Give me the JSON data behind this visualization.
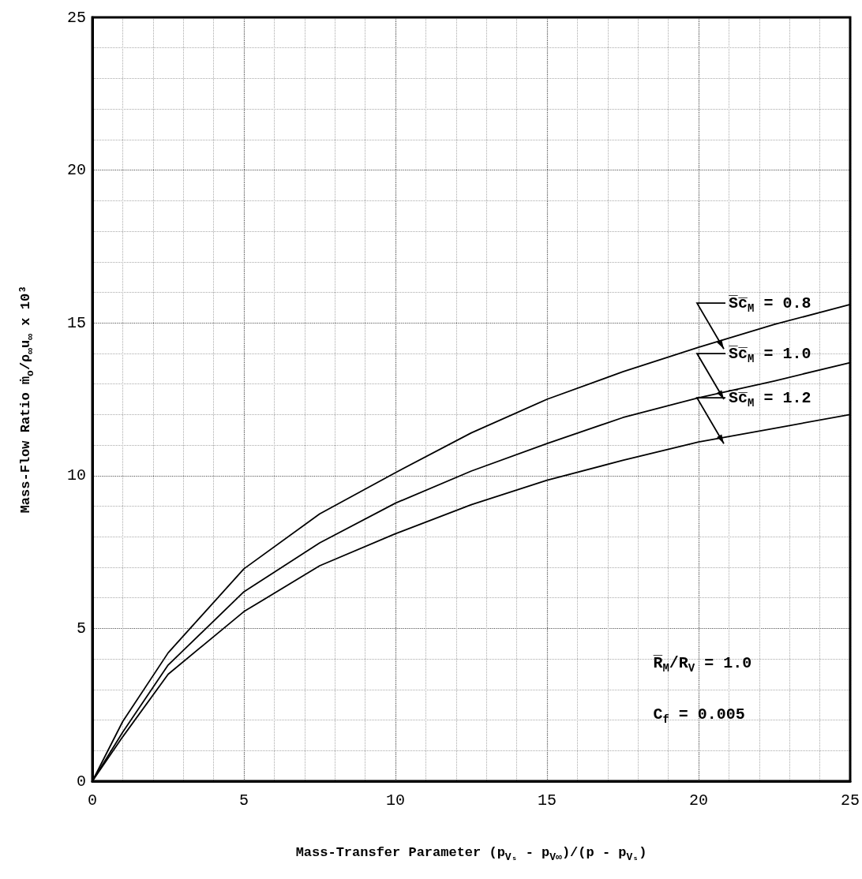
{
  "chart_data": {
    "type": "line",
    "xlabel": "Mass-Transfer Parameter (p$_{Vₛ}$ - p$_{V∞}$)/(p - p$_{Vₛ}$)",
    "ylabel": "Mass-Flow Ratio ṁ$_{o}$/ρ$_{∞}$u$_{∞}$ x 10³",
    "x": [
      0,
      1,
      2.5,
      5,
      7.5,
      10,
      12.5,
      15,
      17.5,
      20,
      22.5,
      25
    ],
    "series": [
      {
        "name": "S̅c̅$_{M}$ = 0.8",
        "color": "#000000",
        "values": [
          0,
          1.95,
          4.2,
          6.95,
          8.75,
          10.1,
          11.4,
          12.5,
          13.4,
          14.2,
          14.95,
          15.6
        ]
      },
      {
        "name": "S̅c̅$_{M}$ = 1.0",
        "color": "#000000",
        "values": [
          0,
          1.6,
          3.8,
          6.2,
          7.8,
          9.1,
          10.15,
          11.05,
          11.9,
          12.55,
          13.1,
          13.7
        ]
      },
      {
        "name": "S̅c̅$_{M}$ = 1.2",
        "color": "#000000",
        "values": [
          0,
          1.45,
          3.5,
          5.55,
          7.05,
          8.1,
          9.05,
          9.85,
          10.5,
          11.1,
          11.55,
          12.0
        ]
      }
    ],
    "annotations": [
      "R̅$_{M}$/R$_{V}$ = 1.0",
      "C$_{f}$ = 0.005"
    ],
    "xlim": [
      0,
      25
    ],
    "ylim": [
      0,
      25
    ],
    "xticks": [
      0,
      5,
      10,
      15,
      20,
      25
    ],
    "yticks": [
      0,
      5,
      10,
      15,
      20,
      25
    ],
    "grid": true,
    "legend": "right",
    "marker": "none",
    "line_style": "solid"
  }
}
